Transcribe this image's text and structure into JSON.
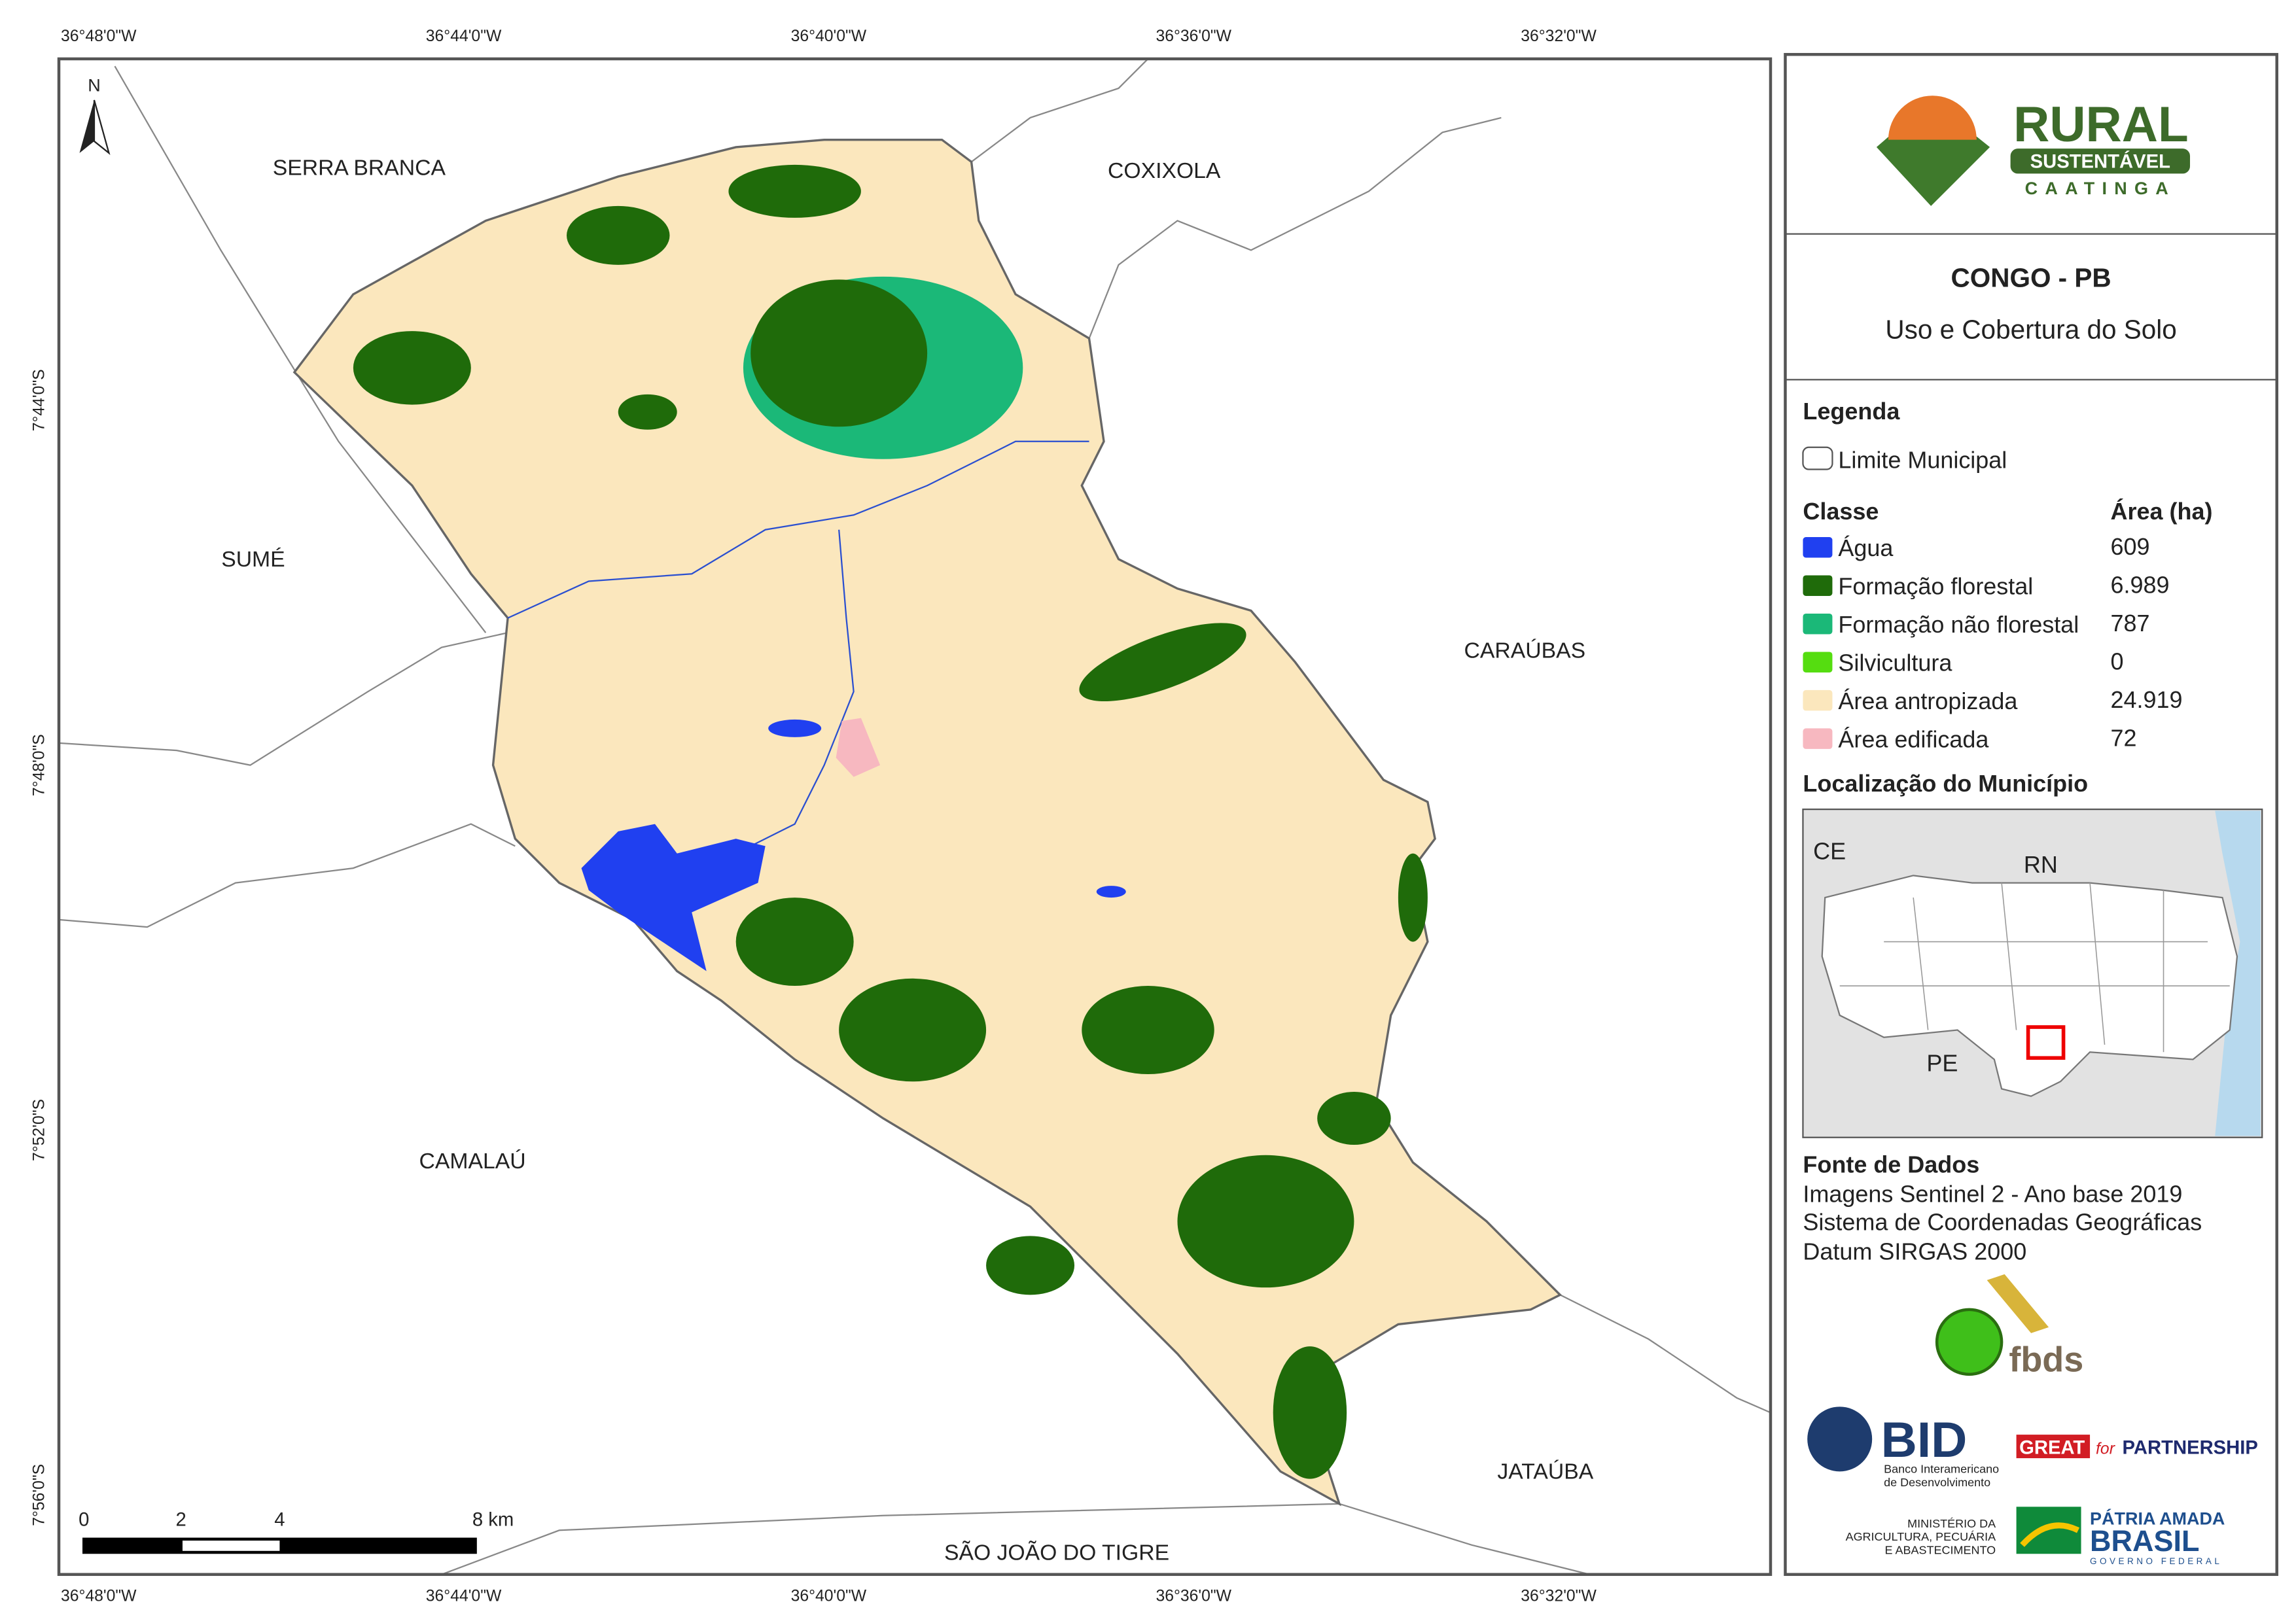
{
  "map": {
    "lon_labels": [
      "36°48'0\"W",
      "36°44'0\"W",
      "36°40'0\"W",
      "36°36'0\"W",
      "36°32'0\"W"
    ],
    "lat_labels": [
      "7°44'0\"S",
      "7°48'0\"S",
      "7°52'0\"S",
      "7°56'0\"S"
    ],
    "north": "N",
    "places": [
      "SERRA BRANCA",
      "COXIXOLA",
      "SUMÉ",
      "CARAÚBAS",
      "CAMALAÚ",
      "JATAÚBA",
      "SÃO JOÃO DO TIGRE"
    ],
    "scale_labels": [
      "0",
      "2",
      "4",
      "8 km"
    ]
  },
  "panel": {
    "logo": {
      "title": "RURAL",
      "subtitle": "SUSTENTÁVEL",
      "tag": "CAATINGA"
    },
    "title": "CONGO - PB",
    "subtitle": "Uso e Cobertura do Solo",
    "legend": {
      "title": "Legenda",
      "boundary": "Limite Municipal",
      "class_header": "Classe",
      "area_header": "Área (ha)",
      "classes": [
        {
          "name": "Água",
          "color": "#2040f0",
          "area": "609"
        },
        {
          "name": "Formação florestal",
          "color": "#1f6b0a",
          "area": "6.989"
        },
        {
          "name": "Formação não florestal",
          "color": "#1bb878",
          "area": "787"
        },
        {
          "name": "Silvicultura",
          "color": "#55dd10",
          "area": "0"
        },
        {
          "name": "Área antropizada",
          "color": "#fbe7bd",
          "area": "24.919"
        },
        {
          "name": "Área edificada",
          "color": "#f7b8c0",
          "area": "72"
        }
      ]
    },
    "location": {
      "title": "Localização do Município",
      "labels": [
        "CE",
        "RN",
        "PE"
      ]
    },
    "sources": {
      "title": "Fonte de Dados",
      "lines": [
        "Imagens Sentinel 2 - Ano base 2019",
        "Sistema de Coordenadas Geográficas",
        "Datum SIRGAS 2000"
      ]
    },
    "partners": {
      "fbds": "fbds",
      "bid": "BID",
      "bid_name": [
        "Banco Interamericano",
        "de Desenvolvimento"
      ],
      "great": "GREAT",
      "great_for": "for",
      "great_partnership": "PARTNERSHIP",
      "ministry": [
        "MINISTÉRIO DA",
        "AGRICULTURA, PECUÁRIA",
        "E ABASTECIMENTO"
      ],
      "patria": "PÁTRIA AMADA",
      "brasil": "BRASIL",
      "governo": "GOVERNO FEDERAL"
    }
  }
}
